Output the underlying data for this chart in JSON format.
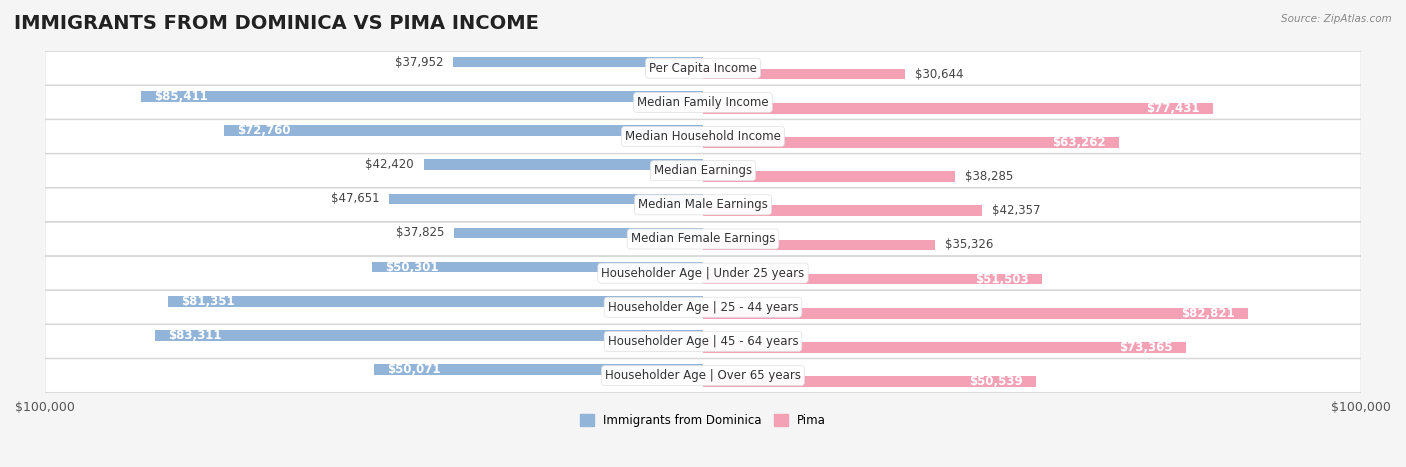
{
  "title": "IMMIGRANTS FROM DOMINICA VS PIMA INCOME",
  "source": "Source: ZipAtlas.com",
  "categories": [
    "Per Capita Income",
    "Median Family Income",
    "Median Household Income",
    "Median Earnings",
    "Median Male Earnings",
    "Median Female Earnings",
    "Householder Age | Under 25 years",
    "Householder Age | 25 - 44 years",
    "Householder Age | 45 - 64 years",
    "Householder Age | Over 65 years"
  ],
  "dominica_values": [
    37952,
    85411,
    72760,
    42420,
    47651,
    37825,
    50301,
    81351,
    83311,
    50071
  ],
  "pima_values": [
    30644,
    77431,
    63262,
    38285,
    42357,
    35326,
    51503,
    82821,
    73365,
    50539
  ],
  "dominica_color": "#92b4d9",
  "pima_color": "#f4a0b5",
  "dominica_label": "Immigrants from Dominica",
  "pima_label": "Pima",
  "max_value": 100000,
  "background_color": "#f5f5f5",
  "row_bg_color": "#ffffff",
  "label_bg_color": "#ffffff",
  "title_fontsize": 14,
  "axis_label_fontsize": 9,
  "bar_label_fontsize": 8.5,
  "category_fontsize": 8.5
}
